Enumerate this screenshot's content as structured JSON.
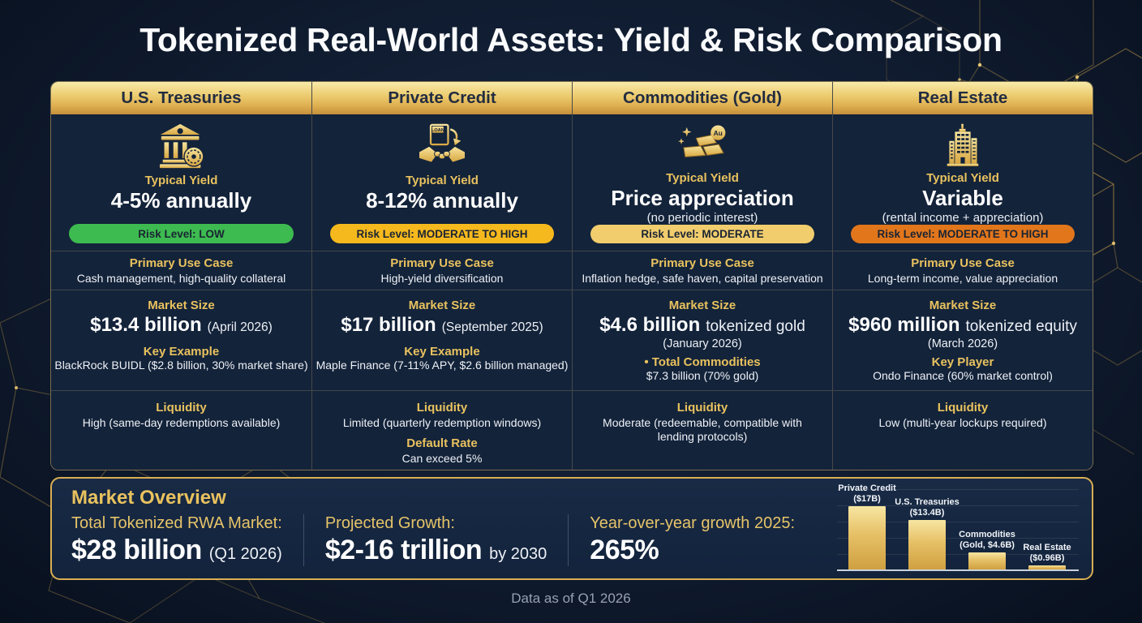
{
  "title": "Tokenized Real-World Assets: Yield & Risk Comparison",
  "footer": "Data as of Q1 2026",
  "colors": {
    "background": "#0e1a2e",
    "accent_gold": "#e8c260",
    "header_gradient_top": "#f9eaa9",
    "header_gradient_bottom": "#c5903a",
    "risk_low_bg": "#3dbb50",
    "risk_moderate_high_bg": "#f6b91d",
    "risk_moderate_bg": "#f2cd6d",
    "risk_moderate_high_orange_bg": "#e2761b",
    "bar_gold": "#e6c066"
  },
  "columns": [
    {
      "title": "U.S. Treasuries",
      "icon": "bank-icon",
      "yield_label": "Typical Yield",
      "yield_value": "4-5% annually",
      "risk": "Risk Level: LOW",
      "risk_bg": "#3dbb50",
      "use_case_label": "Primary Use Case",
      "use_case": "Cash management, high-quality collateral",
      "market_label": "Market Size",
      "market_value": "$13.4 billion",
      "market_suffix": "(April 2026)",
      "example_label": "Key Example",
      "example": "BlackRock BUIDL ($2.8 billion, 30% market share)",
      "liquidity_label": "Liquidity",
      "liquidity": "High (same-day redemptions available)"
    },
    {
      "title": "Private Credit",
      "icon": "handshake-loan-icon",
      "yield_label": "Typical Yield",
      "yield_value": "8-12% annually",
      "risk": "Risk Level: MODERATE TO HIGH",
      "risk_bg": "#f6b91d",
      "use_case_label": "Primary Use Case",
      "use_case": "High-yield diversification",
      "market_label": "Market Size",
      "market_value": "$17 billion",
      "market_suffix": "(September 2025)",
      "example_label": "Key Example",
      "example": "Maple Finance (7-11% APY, $2.6 billion managed)",
      "liquidity_label": "Liquidity",
      "liquidity": "Limited (quarterly redemption windows)",
      "extra_label": "Default Rate",
      "extra": "Can exceed 5%"
    },
    {
      "title": "Commodities (Gold)",
      "icon": "gold-bars-icon",
      "yield_label": "Typical Yield",
      "yield_value": "Price appreciation",
      "yield_note": "(no periodic interest)",
      "risk": "Risk Level: MODERATE",
      "risk_bg": "#f2cd6d",
      "use_case_label": "Primary Use Case",
      "use_case": "Inflation hedge, safe haven, capital preservation",
      "market_label": "Market Size",
      "market_value": "$4.6 billion",
      "market_inline": "tokenized gold",
      "market_date": "(January 2026)",
      "example_label": "• Total Commodities",
      "example": "$7.3 billion (70% gold)",
      "liquidity_label": "Liquidity",
      "liquidity": "Moderate (redeemable, compatible with lending protocols)"
    },
    {
      "title": "Real Estate",
      "icon": "building-icon",
      "yield_label": "Typical Yield",
      "yield_value": "Variable",
      "yield_note": "(rental income + appreciation)",
      "risk": "Risk Level: MODERATE TO HIGH",
      "risk_bg": "#e2761b",
      "use_case_label": "Primary Use Case",
      "use_case": "Long-term income, value appreciation",
      "market_label": "Market Size",
      "market_value": "$960 million",
      "market_inline": "tokenized equity",
      "market_date": "(March 2026)",
      "example_label": "Key Player",
      "example": "Ondo Finance (60% market control)",
      "liquidity_label": "Liquidity",
      "liquidity": "Low (multi-year lockups required)"
    }
  ],
  "overview": {
    "title": "Market Overview",
    "stats": [
      {
        "label": "Total Tokenized RWA Market:",
        "value": "$28 billion",
        "suffix": "(Q1 2026)"
      },
      {
        "label": "Projected Growth:",
        "value": "$2-16 trillion",
        "suffix": "by 2030"
      },
      {
        "label": "Year-over-year growth 2025:",
        "value": "265%",
        "suffix": ""
      }
    ]
  },
  "chart_data": {
    "type": "bar",
    "title": "",
    "xlabel": "",
    "ylabel": "",
    "unit": "USD billions",
    "categories": [
      "Private Credit",
      "U.S. Treasuries",
      "Commodities (Gold)",
      "Real Estate"
    ],
    "values": [
      17,
      13.4,
      4.6,
      0.96
    ],
    "bars": [
      {
        "name": "Private Credit",
        "value": 17,
        "value_label": "($17B)"
      },
      {
        "name": "U.S. Treasuries",
        "value": 13.4,
        "value_label": "($13.4B)"
      },
      {
        "name": "Commodities",
        "value": 4.6,
        "value_label": "(Gold, $4.6B)"
      },
      {
        "name": "Real Estate",
        "value": 0.96,
        "value_label": "($0.96B)"
      }
    ],
    "ylim": [
      0,
      18
    ],
    "grid": true,
    "legend": false
  }
}
